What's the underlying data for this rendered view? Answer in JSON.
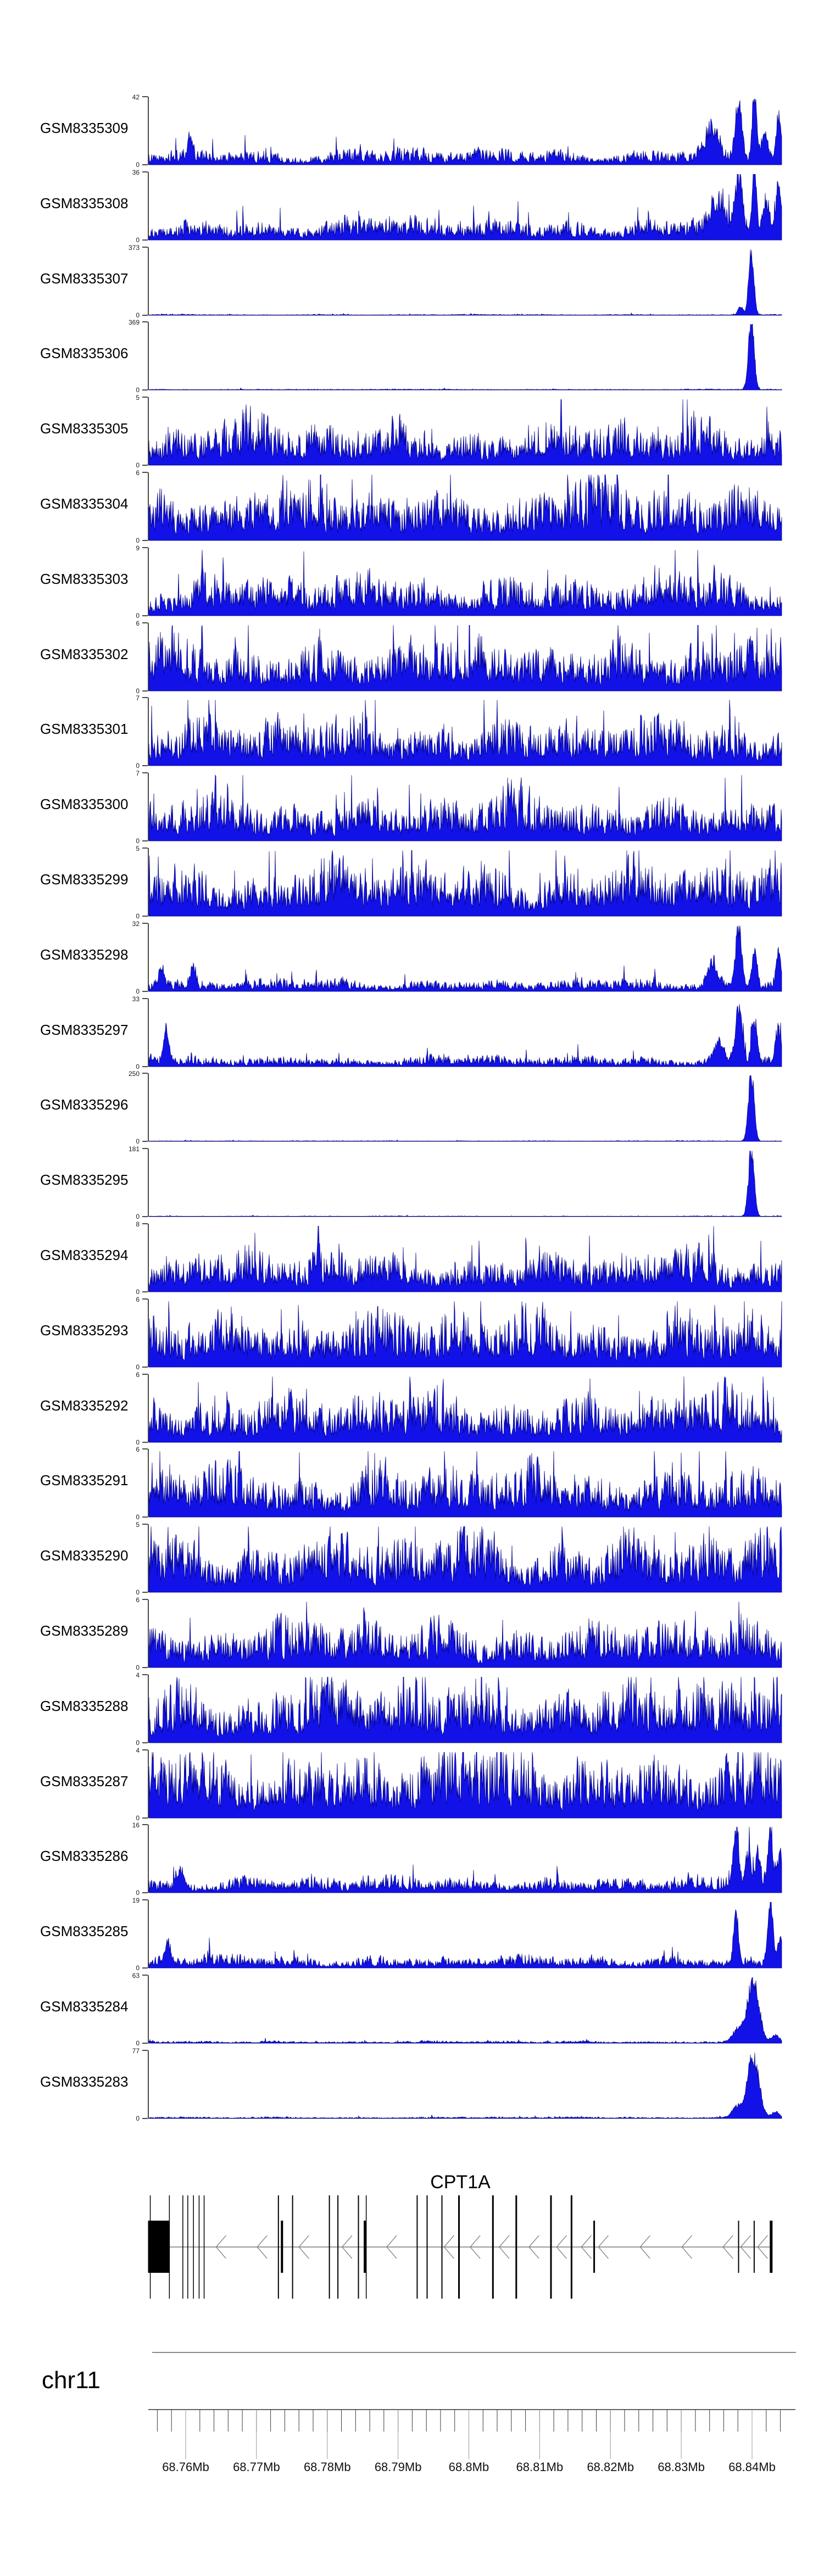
{
  "figure": {
    "background": "#ffffff",
    "signal_fill": "#1212e8",
    "signal_stroke": "#000080",
    "axis_color": "#4a4a4a",
    "gene_color": "#000000",
    "intron_color": "#7a7a7a",
    "y_zero_label": "0"
  },
  "chart_data": {
    "type": "area",
    "title": "",
    "legend": "none",
    "grid": false,
    "x_axis": {
      "chromosome": "chr11",
      "range_mb": [
        68.7547,
        68.8447
      ],
      "major_ticks": [
        {
          "mb": 68.76,
          "label": "68.76Mb"
        },
        {
          "mb": 68.77,
          "label": "68.77Mb"
        },
        {
          "mb": 68.78,
          "label": "68.78Mb"
        },
        {
          "mb": 68.79,
          "label": "68.79Mb"
        },
        {
          "mb": 68.8,
          "label": "68.8Mb"
        },
        {
          "mb": 68.81,
          "label": "68.81Mb"
        },
        {
          "mb": 68.82,
          "label": "68.82Mb"
        },
        {
          "mb": 68.83,
          "label": "68.83Mb"
        },
        {
          "mb": 68.84,
          "label": "68.84Mb"
        }
      ],
      "minor_tick_start_mb": 68.756,
      "minor_tick_end_mb": 68.844,
      "minor_tick_step_mb": 0.002
    },
    "tracks": [
      {
        "label": "GSM8335309",
        "ymin": 0,
        "ymax": 42,
        "profile": "noisy-peaks",
        "base": 0.13,
        "peaks": [
          {
            "x": 0.065,
            "h": 0.3,
            "w": 0.004
          },
          {
            "x": 0.89,
            "h": 0.4,
            "w": 0.01
          },
          {
            "x": 0.932,
            "h": 0.8,
            "w": 0.005
          },
          {
            "x": 0.957,
            "h": 0.95,
            "w": 0.0035
          },
          {
            "x": 0.973,
            "h": 0.4,
            "w": 0.005
          },
          {
            "x": 0.995,
            "h": 0.58,
            "w": 0.004
          }
        ]
      },
      {
        "label": "GSM8335308",
        "ymin": 0,
        "ymax": 36,
        "profile": "noisy-peaks",
        "base": 0.17,
        "peaks": [
          {
            "x": 0.9,
            "h": 0.42,
            "w": 0.01
          },
          {
            "x": 0.932,
            "h": 0.72,
            "w": 0.006
          },
          {
            "x": 0.957,
            "h": 0.95,
            "w": 0.0035
          },
          {
            "x": 0.975,
            "h": 0.45,
            "w": 0.005
          },
          {
            "x": 0.995,
            "h": 0.62,
            "w": 0.005
          }
        ]
      },
      {
        "label": "GSM8335307",
        "ymin": 0,
        "ymax": 373,
        "profile": "flat-spike",
        "base": 0.008,
        "peaks": [
          {
            "x": 0.935,
            "h": 0.12,
            "w": 0.004
          },
          {
            "x": 0.952,
            "h": 0.95,
            "w": 0.004
          }
        ]
      },
      {
        "label": "GSM8335306",
        "ymin": 0,
        "ymax": 369,
        "profile": "flat-spike",
        "base": 0.008,
        "peaks": [
          {
            "x": 0.952,
            "h": 0.97,
            "w": 0.0045
          }
        ]
      },
      {
        "label": "GSM8335305",
        "ymin": 0,
        "ymax": 5,
        "profile": "dense",
        "base": 0.36,
        "peaks": []
      },
      {
        "label": "GSM8335304",
        "ymin": 0,
        "ymax": 6,
        "profile": "dense",
        "base": 0.44,
        "peaks": []
      },
      {
        "label": "GSM8335303",
        "ymin": 0,
        "ymax": 9,
        "profile": "dense",
        "base": 0.33,
        "peaks": []
      },
      {
        "label": "GSM8335302",
        "ymin": 0,
        "ymax": 6,
        "profile": "dense",
        "base": 0.42,
        "peaks": []
      },
      {
        "label": "GSM8335301",
        "ymin": 0,
        "ymax": 7,
        "profile": "dense",
        "base": 0.38,
        "peaks": []
      },
      {
        "label": "GSM8335300",
        "ymin": 0,
        "ymax": 7,
        "profile": "dense",
        "base": 0.36,
        "peaks": []
      },
      {
        "label": "GSM8335299",
        "ymin": 0,
        "ymax": 5,
        "profile": "dense",
        "base": 0.43,
        "peaks": []
      },
      {
        "label": "GSM8335298",
        "ymin": 0,
        "ymax": 32,
        "profile": "noisy-peaks",
        "base": 0.1,
        "peaks": [
          {
            "x": 0.02,
            "h": 0.25,
            "w": 0.005
          },
          {
            "x": 0.07,
            "h": 0.28,
            "w": 0.004
          },
          {
            "x": 0.89,
            "h": 0.35,
            "w": 0.008
          },
          {
            "x": 0.932,
            "h": 0.85,
            "w": 0.005
          },
          {
            "x": 0.957,
            "h": 0.55,
            "w": 0.004
          },
          {
            "x": 0.995,
            "h": 0.5,
            "w": 0.004
          }
        ]
      },
      {
        "label": "GSM8335297",
        "ymin": 0,
        "ymax": 33,
        "profile": "noisy-peaks",
        "base": 0.09,
        "peaks": [
          {
            "x": 0.027,
            "h": 0.45,
            "w": 0.004
          },
          {
            "x": 0.9,
            "h": 0.3,
            "w": 0.008
          },
          {
            "x": 0.932,
            "h": 0.8,
            "w": 0.005
          },
          {
            "x": 0.957,
            "h": 0.6,
            "w": 0.004
          },
          {
            "x": 0.995,
            "h": 0.52,
            "w": 0.004
          }
        ]
      },
      {
        "label": "GSM8335296",
        "ymin": 0,
        "ymax": 250,
        "profile": "flat-spike",
        "base": 0.006,
        "peaks": [
          {
            "x": 0.952,
            "h": 0.97,
            "w": 0.0045
          }
        ]
      },
      {
        "label": "GSM8335295",
        "ymin": 0,
        "ymax": 181,
        "profile": "flat-spike",
        "base": 0.006,
        "peaks": [
          {
            "x": 0.952,
            "h": 0.97,
            "w": 0.0045
          }
        ]
      },
      {
        "label": "GSM8335294",
        "ymin": 0,
        "ymax": 8,
        "profile": "dense",
        "base": 0.33,
        "peaks": [
          {
            "x": 0.268,
            "h": 0.72,
            "w": 0.002
          }
        ]
      },
      {
        "label": "GSM8335293",
        "ymin": 0,
        "ymax": 6,
        "profile": "dense",
        "base": 0.45,
        "peaks": []
      },
      {
        "label": "GSM8335292",
        "ymin": 0,
        "ymax": 6,
        "profile": "dense",
        "base": 0.4,
        "peaks": []
      },
      {
        "label": "GSM8335291",
        "ymin": 0,
        "ymax": 6,
        "profile": "dense",
        "base": 0.42,
        "peaks": []
      },
      {
        "label": "GSM8335290",
        "ymin": 0,
        "ymax": 5,
        "profile": "dense",
        "base": 0.47,
        "peaks": []
      },
      {
        "label": "GSM8335289",
        "ymin": 0,
        "ymax": 6,
        "profile": "dense",
        "base": 0.38,
        "peaks": []
      },
      {
        "label": "GSM8335288",
        "ymin": 0,
        "ymax": 4,
        "profile": "dense",
        "base": 0.5,
        "peaks": []
      },
      {
        "label": "GSM8335287",
        "ymin": 0,
        "ymax": 4,
        "profile": "dense",
        "base": 0.55,
        "peaks": []
      },
      {
        "label": "GSM8335286",
        "ymin": 0,
        "ymax": 16,
        "profile": "noisy-peaks",
        "base": 0.13,
        "peaks": [
          {
            "x": 0.05,
            "h": 0.22,
            "w": 0.006
          },
          {
            "x": 0.928,
            "h": 0.9,
            "w": 0.004
          },
          {
            "x": 0.947,
            "h": 0.48,
            "w": 0.004
          },
          {
            "x": 0.962,
            "h": 0.45,
            "w": 0.004
          },
          {
            "x": 0.982,
            "h": 0.78,
            "w": 0.004
          },
          {
            "x": 0.997,
            "h": 0.5,
            "w": 0.004
          }
        ]
      },
      {
        "label": "GSM8335285",
        "ymin": 0,
        "ymax": 19,
        "profile": "noisy-peaks",
        "base": 0.1,
        "peaks": [
          {
            "x": 0.03,
            "h": 0.33,
            "w": 0.004
          },
          {
            "x": 0.928,
            "h": 0.72,
            "w": 0.004
          },
          {
            "x": 0.982,
            "h": 0.92,
            "w": 0.004
          },
          {
            "x": 0.997,
            "h": 0.38,
            "w": 0.004
          }
        ]
      },
      {
        "label": "GSM8335284",
        "ymin": 0,
        "ymax": 63,
        "profile": "flat-spike",
        "base": 0.018,
        "peaks": [
          {
            "x": 0.93,
            "h": 0.18,
            "w": 0.008
          },
          {
            "x": 0.955,
            "h": 0.92,
            "w": 0.009
          },
          {
            "x": 0.99,
            "h": 0.1,
            "w": 0.006
          }
        ]
      },
      {
        "label": "GSM8335283",
        "ymin": 0,
        "ymax": 77,
        "profile": "flat-spike",
        "base": 0.014,
        "peaks": [
          {
            "x": 0.93,
            "h": 0.16,
            "w": 0.008
          },
          {
            "x": 0.955,
            "h": 0.9,
            "w": 0.009
          },
          {
            "x": 0.99,
            "h": 0.08,
            "w": 0.006
          }
        ]
      }
    ],
    "gene_annotation": {
      "gene": "CPT1A",
      "strand": "-",
      "chromosome": "chr11",
      "model_span_mb": [
        68.7577,
        68.8427
      ],
      "exons": [
        {
          "mb": 68.755,
          "h": "tall",
          "w": 1.5
        },
        {
          "mb": 68.7562,
          "h": "short",
          "w": 39
        },
        {
          "mb": 68.7577,
          "h": "tall",
          "w": 1.5
        },
        {
          "mb": 68.7596,
          "h": "tall",
          "w": 1.5
        },
        {
          "mb": 68.7603,
          "h": "tall",
          "w": 1.5
        },
        {
          "mb": 68.7611,
          "h": "tall",
          "w": 1.5
        },
        {
          "mb": 68.7619,
          "h": "tall",
          "w": 1.5
        },
        {
          "mb": 68.7626,
          "h": "tall",
          "w": 1.5
        },
        {
          "mb": 68.7731,
          "h": "tall",
          "w": 2
        },
        {
          "mb": 68.7736,
          "h": "short",
          "w": 4
        },
        {
          "mb": 68.7751,
          "h": "tall",
          "w": 2
        },
        {
          "mb": 68.7803,
          "h": "tall",
          "w": 2
        },
        {
          "mb": 68.7815,
          "h": "tall",
          "w": 2
        },
        {
          "mb": 68.7844,
          "h": "tall",
          "w": 2
        },
        {
          "mb": 68.7853,
          "h": "short",
          "w": 4
        },
        {
          "mb": 68.7855,
          "h": "tall",
          "w": 1.5
        },
        {
          "mb": 68.7927,
          "h": "tall",
          "w": 2
        },
        {
          "mb": 68.7941,
          "h": "tall",
          "w": 2
        },
        {
          "mb": 68.7962,
          "h": "tall",
          "w": 2
        },
        {
          "mb": 68.7986,
          "h": "tall",
          "w": 3
        },
        {
          "mb": 68.8034,
          "h": "tall",
          "w": 3
        },
        {
          "mb": 68.8067,
          "h": "tall",
          "w": 3
        },
        {
          "mb": 68.8116,
          "h": "tall",
          "w": 3
        },
        {
          "mb": 68.8145,
          "h": "tall",
          "w": 3
        },
        {
          "mb": 68.8177,
          "h": "short",
          "w": 3
        },
        {
          "mb": 68.8381,
          "h": "short",
          "w": 2
        },
        {
          "mb": 68.8403,
          "h": "short",
          "w": 2
        },
        {
          "mb": 68.8427,
          "h": "short",
          "w": 5
        }
      ],
      "strand_arrows_mb": [
        68.765,
        68.7708,
        68.7767,
        68.7828,
        68.7891,
        68.7972,
        68.8009,
        68.805,
        68.8092,
        68.8131,
        68.8166,
        68.819,
        68.8249,
        68.8308,
        68.8366,
        68.8391,
        68.8415
      ]
    }
  }
}
